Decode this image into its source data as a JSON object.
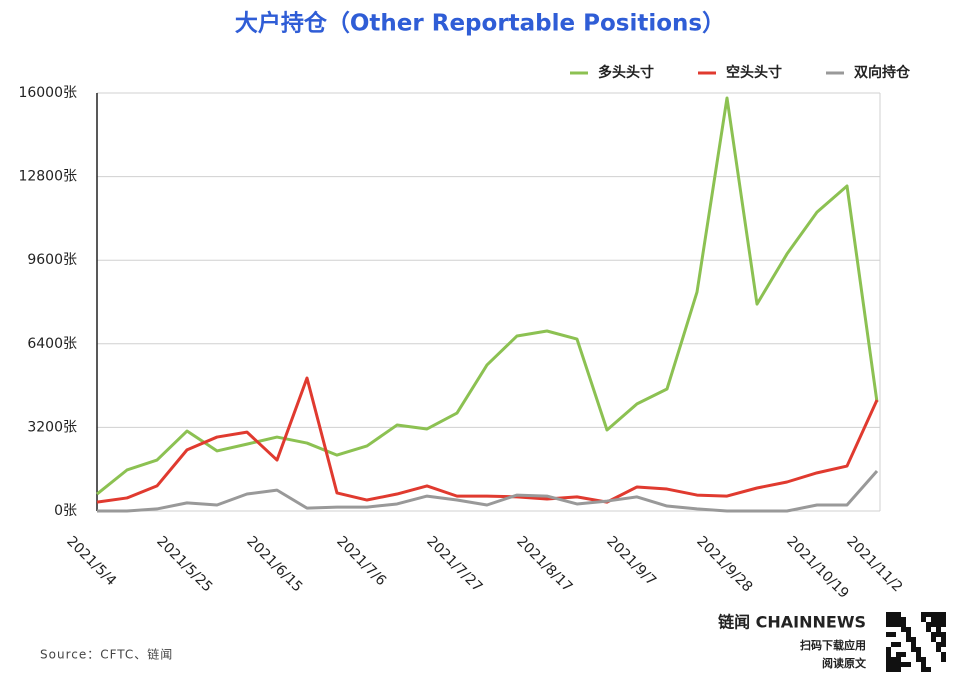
{
  "chart_data": {
    "type": "line",
    "title": "大户持仓（Other Reportable Positions）",
    "categories": [
      "2021/5/4",
      null,
      null,
      "2021/5/25",
      null,
      null,
      "2021/6/15",
      null,
      null,
      "2021/7/6",
      null,
      null,
      "2021/7/27",
      null,
      null,
      "2021/8/17",
      null,
      null,
      "2021/9/7",
      null,
      null,
      "2021/9/28",
      null,
      null,
      "2021/10/19",
      null,
      "2021/11/2"
    ],
    "series": [
      {
        "name": "多头头寸",
        "color": "#8cc152",
        "values": [
          650,
          1570,
          1950,
          3060,
          2300,
          2560,
          2830,
          2600,
          2140,
          2490,
          3290,
          3140,
          3750,
          5590,
          6700,
          6890,
          6580,
          3100,
          4100,
          4670,
          8380,
          15810,
          7920,
          9840,
          11440,
          12440,
          4170
        ]
      },
      {
        "name": "空头头寸",
        "color": "#e03a2f",
        "values": [
          340,
          500,
          960,
          2340,
          2830,
          3020,
          1950,
          5090,
          690,
          420,
          650,
          960,
          570,
          570,
          540,
          460,
          540,
          340,
          920,
          840,
          610,
          570,
          880,
          1110,
          1460,
          1720,
          4250
        ]
      },
      {
        "name": "双向持仓",
        "color": "#999999",
        "values": [
          0,
          0,
          80,
          310,
          230,
          650,
          800,
          110,
          150,
          150,
          270,
          570,
          420,
          230,
          610,
          570,
          270,
          380,
          540,
          190,
          80,
          0,
          0,
          0,
          230,
          230,
          1530
        ]
      }
    ],
    "ylim": [
      0,
      16000
    ],
    "yticks": [
      {
        "value": 0,
        "label": "0张"
      },
      {
        "value": 3200,
        "label": "3200张"
      },
      {
        "value": 6400,
        "label": "6400张"
      },
      {
        "value": 9600,
        "label": "9600张"
      },
      {
        "value": 12800,
        "label": "12800张"
      },
      {
        "value": 16000,
        "label": "16000张"
      }
    ],
    "grid": true,
    "legend": "top-right",
    "source": "Source：CFTC、链闻",
    "brand": "链闻 CHAINNEWS",
    "brand_line1": "扫码下载应用",
    "brand_line2": "阅读原文"
  }
}
